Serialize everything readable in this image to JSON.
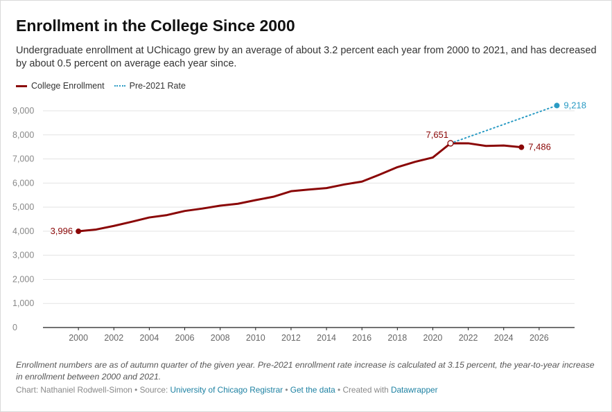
{
  "title": "Enrollment in the College Since 2000",
  "subtitle": "Undergraduate enrollment at UChicago grew by an average of about 3.2 percent each year from 2000 to 2021, and has decreased by about 0.5 percent on average each year since.",
  "notes": "Enrollment numbers are as of autumn quarter of the given year. Pre-2021 enrollment rate increase is calculated at 3.15 percent, the year-to-year increase in enrollment between 2000 and 2021.",
  "credits": {
    "chart_prefix": "Chart: Nathaniel Rodwell-Simon",
    "source_prefix": "Source:",
    "source": "University of Chicago Registrar",
    "get_data": "Get the data",
    "created_prefix": "Created with",
    "tool": "Datawrapper",
    "sep": "•"
  },
  "colors": {
    "enrollment": "#8a0606",
    "rate": "#2a9bc4",
    "grid": "#e3e3e3",
    "axis": "#1d1d1d",
    "tick_text": "#888888"
  },
  "chart_data": {
    "type": "line",
    "title": "Enrollment in the College Since 2000",
    "xlabel": "",
    "ylabel": "",
    "xlim": [
      1998,
      2028
    ],
    "ylim": [
      0,
      9500
    ],
    "x_ticks": [
      2000,
      2002,
      2004,
      2006,
      2008,
      2010,
      2012,
      2014,
      2016,
      2018,
      2020,
      2022,
      2024,
      2026
    ],
    "y_ticks": [
      0,
      1000,
      2000,
      3000,
      4000,
      5000,
      6000,
      7000,
      8000,
      9000
    ],
    "y_tick_labels": [
      "0",
      "1,000",
      "2,000",
      "3,000",
      "4,000",
      "5,000",
      "6,000",
      "7,000",
      "8,000",
      "9,000"
    ],
    "grid": true,
    "legend": "top-left",
    "series": [
      {
        "name": "College Enrollment",
        "style": "solid",
        "x": [
          2000,
          2001,
          2002,
          2003,
          2004,
          2005,
          2006,
          2007,
          2008,
          2009,
          2010,
          2011,
          2012,
          2013,
          2014,
          2015,
          2016,
          2017,
          2018,
          2019,
          2020,
          2021,
          2022,
          2023,
          2024,
          2025
        ],
        "values": [
          3996,
          4070,
          4220,
          4390,
          4570,
          4670,
          4840,
          4940,
          5060,
          5140,
          5290,
          5430,
          5660,
          5730,
          5790,
          5940,
          6060,
          6350,
          6660,
          6880,
          7060,
          7651,
          7650,
          7540,
          7560,
          7486
        ]
      },
      {
        "name": "Pre-2021 Rate",
        "style": "dotted",
        "x": [
          2021,
          2027
        ],
        "values": [
          7651,
          9218
        ]
      }
    ],
    "annotations": [
      {
        "x": 2000,
        "y": 3996,
        "label": "3,996",
        "series": 0,
        "side": "left",
        "marker": "filled"
      },
      {
        "x": 2021,
        "y": 7651,
        "label": "7,651",
        "series": 0,
        "side": "above-left",
        "marker": "hollow"
      },
      {
        "x": 2025,
        "y": 7486,
        "label": "7,486",
        "series": 0,
        "side": "right",
        "marker": "filled"
      },
      {
        "x": 2027,
        "y": 9218,
        "label": "9,218",
        "series": 1,
        "side": "right",
        "marker": "filled"
      }
    ]
  }
}
